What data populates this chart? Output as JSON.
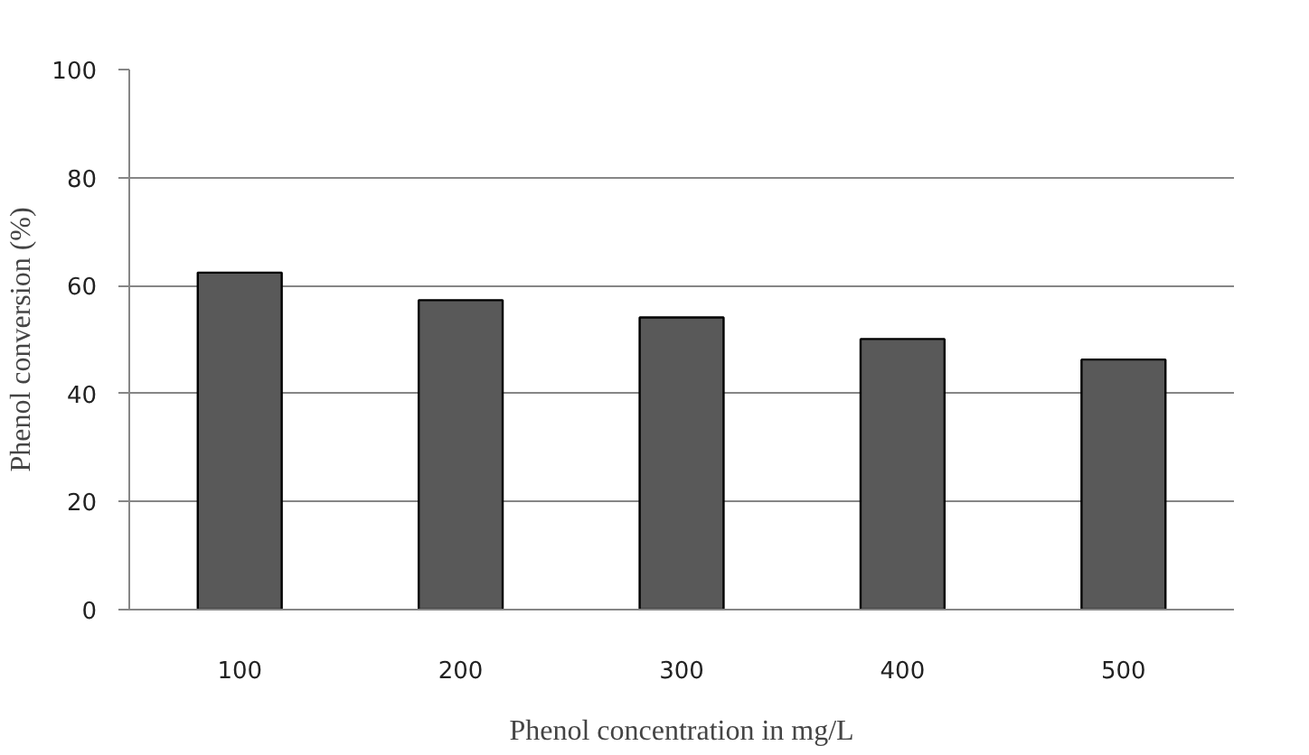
{
  "chart_data": {
    "type": "bar",
    "xlabel": "Phenol concentration in mg/L",
    "ylabel": "Phenol conversion (%)",
    "categories": [
      "100",
      "200",
      "300",
      "400",
      "500"
    ],
    "values": [
      62.4,
      57.3,
      54.1,
      50.1,
      46.3
    ],
    "color": "#595959",
    "ylim": [
      0,
      100
    ],
    "yticks": [
      0,
      20,
      40,
      60,
      80,
      100
    ],
    "grid": "y"
  }
}
